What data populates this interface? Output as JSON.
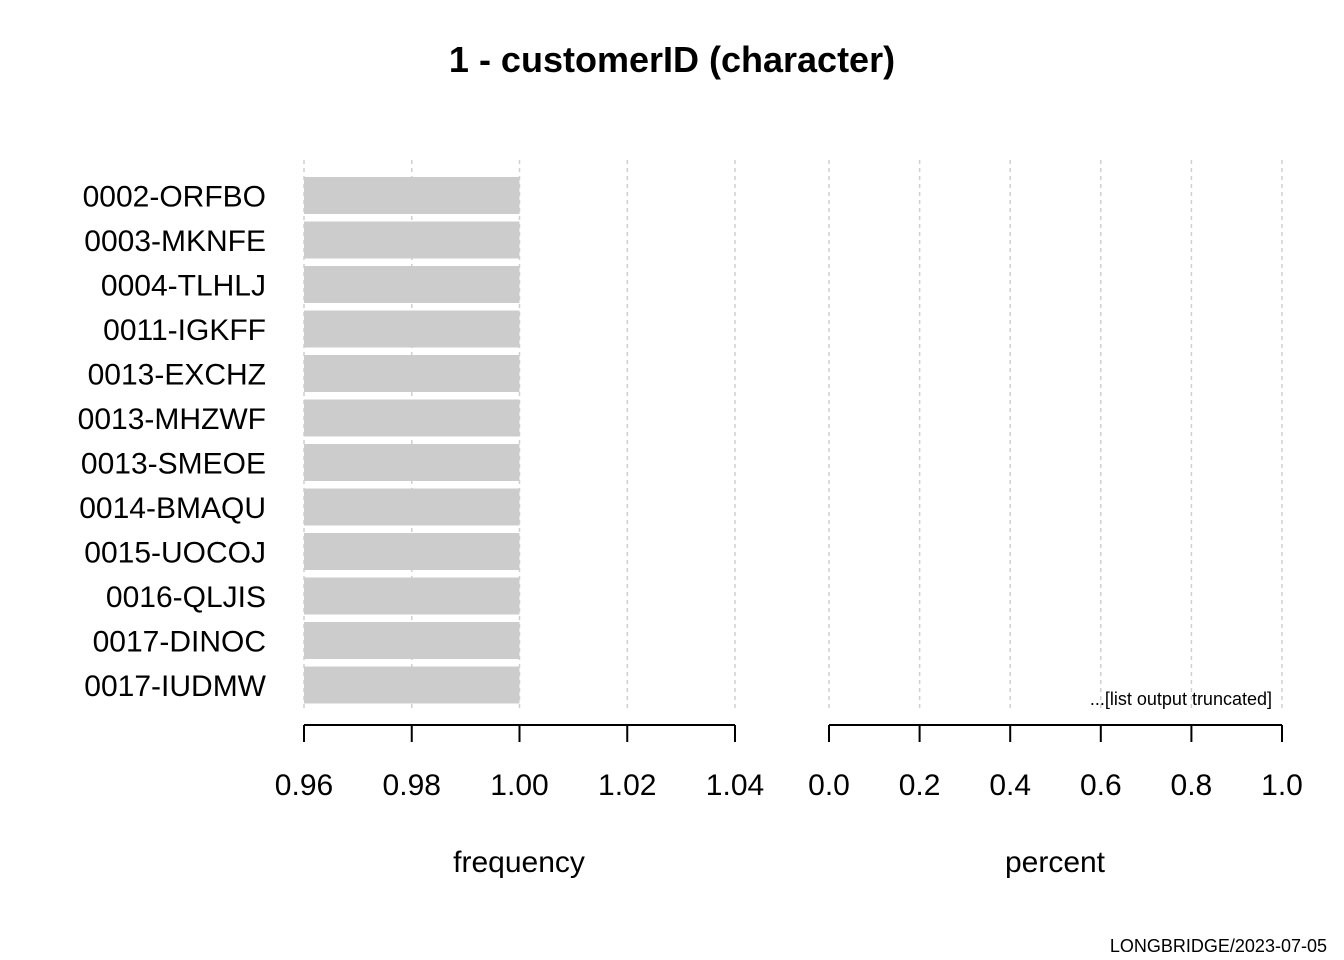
{
  "chart_data": {
    "type": "bar",
    "title": "1 - customerID (character)",
    "categories": [
      "0002-ORFBO",
      "0003-MKNFE",
      "0004-TLHLJ",
      "0011-IGKFF",
      "0013-EXCHZ",
      "0013-MHZWF",
      "0013-SMEOE",
      "0014-BMAQU",
      "0015-UOCOJ",
      "0016-QLJIS",
      "0017-DINOC",
      "0017-IUDMW"
    ],
    "panels": [
      {
        "xlabel": "frequency",
        "values": [
          1,
          1,
          1,
          1,
          1,
          1,
          1,
          1,
          1,
          1,
          1,
          1
        ],
        "xlim": [
          0.96,
          1.04
        ],
        "ticks": [
          0.96,
          0.98,
          1.0,
          1.02,
          1.04
        ],
        "tick_labels": [
          "0.96",
          "0.98",
          "1.00",
          "1.02",
          "1.04"
        ]
      },
      {
        "xlabel": "percent",
        "values": [],
        "xlim": [
          0.0,
          1.0
        ],
        "ticks": [
          0.0,
          0.2,
          0.4,
          0.6,
          0.8,
          1.0
        ],
        "tick_labels": [
          "0.0",
          "0.2",
          "0.4",
          "0.6",
          "0.8",
          "1.0"
        ]
      }
    ],
    "grid": "dotted vertical",
    "bar_color": "#cccccc",
    "note": "...[list output truncated]",
    "footer": "LONGBRIDGE/2023-07-05"
  }
}
